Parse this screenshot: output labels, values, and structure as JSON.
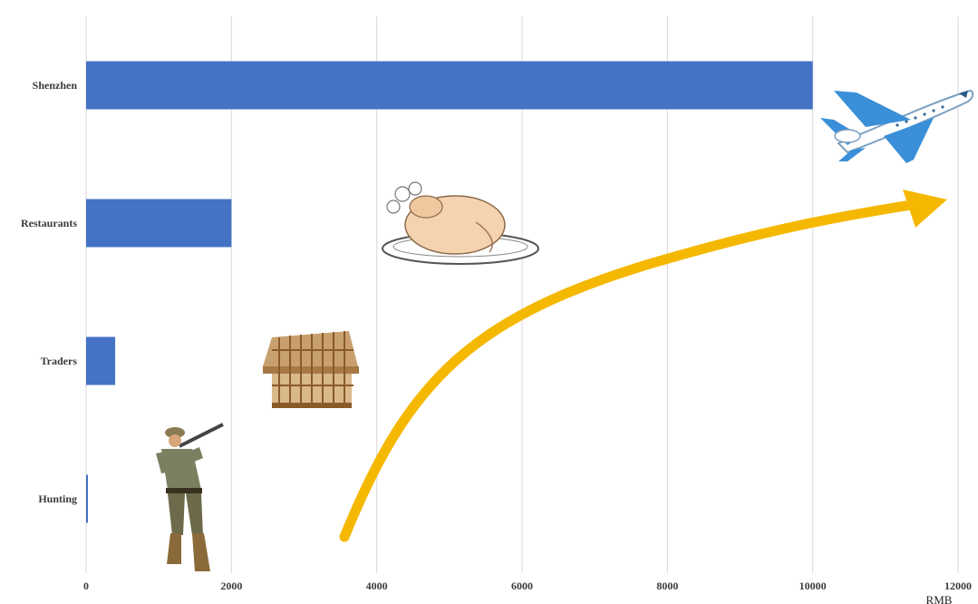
{
  "chart_data": {
    "type": "bar",
    "orientation": "horizontal",
    "categories": [
      "Shenzhen",
      "Restaurants",
      "Traders",
      "Hunting"
    ],
    "values": [
      10000,
      2000,
      400,
      20
    ],
    "xlabel": "",
    "x_unit": "RMB",
    "ylabel": "",
    "xlim": [
      0,
      12000
    ],
    "xticks": [
      0,
      2000,
      4000,
      6000,
      8000,
      10000,
      12000
    ],
    "grid": "vertical",
    "legend": "none",
    "bar_color": "#4472C4",
    "arrow_color": "#F5B800",
    "illustrations": [
      "hunter-icon",
      "cage-icon",
      "roast-chicken-icon",
      "airplane-icon"
    ]
  }
}
